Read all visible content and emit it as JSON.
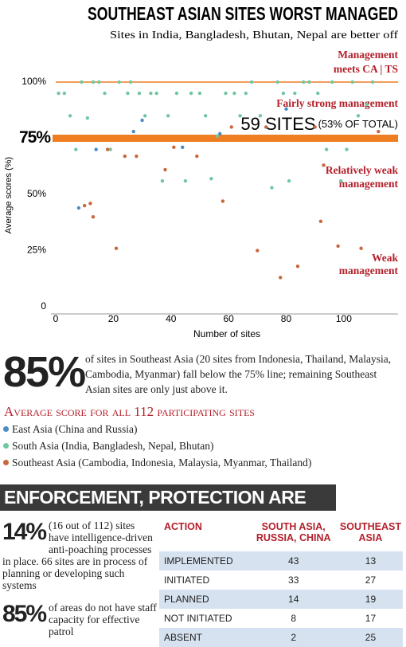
{
  "header": {
    "title": "SOUTHEAST ASIAN SITES WORST MANAGED",
    "subtitle": "Sites in India, Bangladesh, Bhutan, Nepal are better off"
  },
  "chart_data": {
    "type": "scatter",
    "x_label": "Number of sites",
    "y_label": "Average scores (%)",
    "xlim": [
      0,
      118
    ],
    "xticks": [
      0,
      20,
      40,
      60,
      80,
      100
    ],
    "ylim": [
      0,
      100
    ],
    "yticks": [
      0,
      {
        "value": 25,
        "label": "25%"
      },
      {
        "value": 50,
        "label": "50%"
      },
      {
        "value": 75,
        "label": "75%"
      },
      {
        "value": 100,
        "label": "100%"
      }
    ],
    "reference_lines": [
      100,
      75
    ],
    "reference_color": "#ef7d22",
    "annotations": [
      {
        "lines": [
          "Management",
          "meets CA | TS"
        ]
      },
      {
        "lines": [
          "Fairly strong management"
        ]
      },
      {
        "lines": [
          "Relatively weak",
          "management"
        ]
      },
      {
        "lines": [
          "Weak",
          "management"
        ]
      }
    ],
    "highlight": {
      "count": "59 SITES",
      "share": "(53% OF TOTAL)"
    },
    "legend_title": "Average score for all 112 participating sites",
    "series": [
      {
        "name": "East Asia (China and Russia)",
        "color": "#4a8cc4",
        "x": [
          8,
          14,
          27,
          30,
          44,
          57,
          80
        ],
        "values": [
          44,
          70,
          78,
          83,
          71,
          77,
          88
        ]
      },
      {
        "name": "South Asia (India, Bangladesh, Nepal, Bhutan)",
        "color": "#72c7a0",
        "x": [
          1,
          3,
          5,
          7,
          9,
          11,
          13,
          15,
          17,
          19,
          22,
          25,
          26,
          29,
          31,
          33,
          35,
          37,
          39,
          42,
          45,
          47,
          50,
          52,
          54,
          56,
          59,
          62,
          64,
          66,
          68,
          71,
          75,
          77,
          79,
          81,
          83,
          86,
          88,
          91,
          94,
          96,
          99,
          101,
          103,
          105,
          108,
          110
        ],
        "values": [
          95,
          95,
          85,
          70,
          100,
          84,
          100,
          100,
          95,
          70,
          100,
          95,
          100,
          95,
          85,
          95,
          95,
          56,
          85,
          95,
          56,
          95,
          95,
          85,
          57,
          76,
          95,
          95,
          85,
          95,
          100,
          85,
          53,
          100,
          95,
          56,
          95,
          100,
          100,
          95,
          70,
          100,
          56,
          70,
          100,
          85,
          90,
          100
        ]
      },
      {
        "name": "Southeast Asia (Cambodia, Indonesia, Malaysia, Myanmar, Thailand)",
        "color": "#c8673f",
        "x": [
          10,
          12,
          13,
          18,
          21,
          24,
          28,
          38,
          41,
          49,
          58,
          61,
          70,
          73,
          78,
          84,
          90,
          92,
          93,
          98,
          106,
          112
        ],
        "values": [
          45,
          46,
          40,
          70,
          26,
          67,
          67,
          61,
          71,
          67,
          47,
          80,
          25,
          80,
          13,
          18,
          80,
          38,
          63,
          27,
          26,
          78
        ]
      }
    ]
  },
  "summary": {
    "figure": "85%",
    "text": "of sites in Southeast Asia (20 sites from Indonesia, Thailand, Malaysia, Cambodia, Myanmar) fall below the 75% line; remaining Southeast Asian sites are only just above it."
  },
  "enforcement": {
    "heading": "ENFORCEMENT, PROTECTION ARE INADEQUATE",
    "stats": [
      {
        "figure": "14%",
        "text": "(16 out of 112) sites have intelligence-driven anti-poaching processes in place. 66 sites are in process of planning or developing such systems"
      },
      {
        "figure": "85%",
        "text": "of areas do not have staff capacity for effective patrol"
      }
    ],
    "table": {
      "columns": [
        "ACTION",
        "SOUTH ASIA, RUSSIA, CHINA",
        "SOUTHEAST ASIA"
      ],
      "rows": [
        [
          "IMPLEMENTED",
          43,
          13
        ],
        [
          "INITIATED",
          33,
          27
        ],
        [
          "PLANNED",
          14,
          19
        ],
        [
          "NOT INITIATED",
          8,
          17
        ],
        [
          "ABSENT",
          2,
          25
        ]
      ]
    }
  }
}
